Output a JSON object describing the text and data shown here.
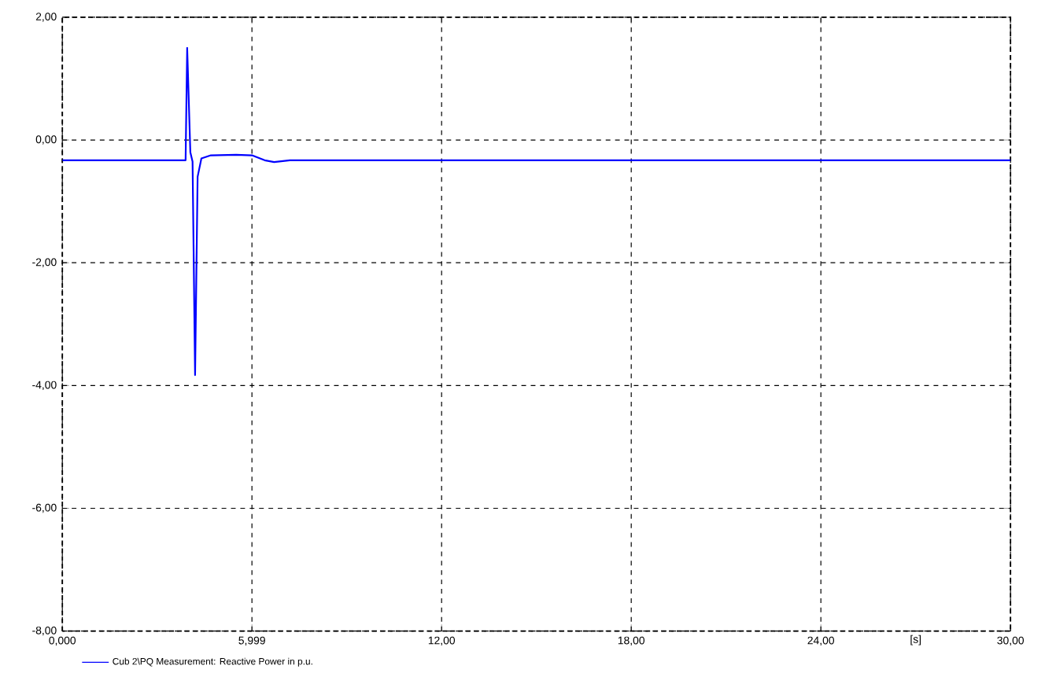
{
  "chart_data": {
    "type": "line",
    "x": [
      0,
      3.9,
      3.95,
      4.05,
      4.12,
      4.2,
      4.28,
      4.4,
      4.7,
      5.5,
      6.0,
      6.4,
      6.7,
      7.2,
      8,
      30
    ],
    "series": [
      {
        "name": "Cub 2\\PQ Measurement: Reactive Power in p.u.",
        "color": "#0000ff",
        "values": [
          -0.33,
          -0.33,
          1.5,
          -0.2,
          -0.35,
          -3.83,
          -0.6,
          -0.3,
          -0.25,
          -0.24,
          -0.25,
          -0.33,
          -0.36,
          -0.33,
          -0.33,
          -0.33
        ]
      }
    ],
    "xlabel": "[s]",
    "xlim": [
      0,
      30
    ],
    "ylim": [
      -8,
      2
    ],
    "xticks": [
      {
        "value": 0,
        "label": "0,000"
      },
      {
        "value": 5.999,
        "label": "5,999"
      },
      {
        "value": 12,
        "label": "12,00"
      },
      {
        "value": 18,
        "label": "18,00"
      },
      {
        "value": 24,
        "label": "24,00"
      },
      {
        "value": 30,
        "label": "30,00"
      }
    ],
    "yticks": [
      {
        "value": -8,
        "label": "-8,00"
      },
      {
        "value": -6,
        "label": "-6,00"
      },
      {
        "value": -4,
        "label": "-4,00"
      },
      {
        "value": -2,
        "label": "-2,00"
      },
      {
        "value": 0,
        "label": "0,00"
      },
      {
        "value": 2,
        "label": "2,00"
      }
    ],
    "grid": true,
    "legend": "bottom left",
    "line_style": "solid",
    "marker": "none"
  }
}
